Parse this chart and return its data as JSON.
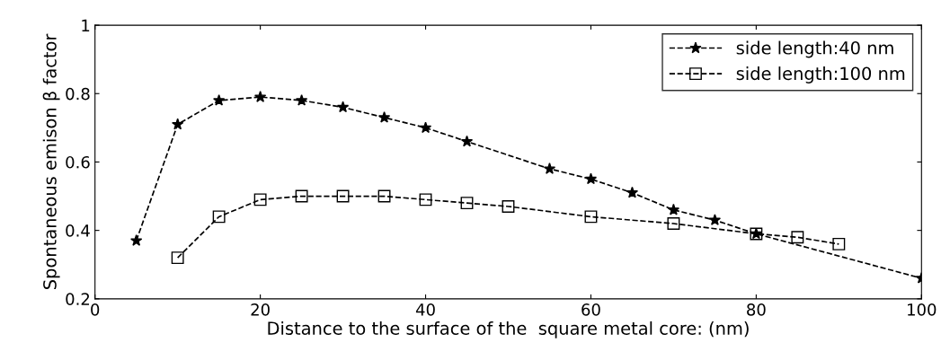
{
  "chart_data": {
    "type": "line",
    "xlabel": "Distance to the surface of the  square metal core: (nm)",
    "ylabel": "Spontaneous emison β factor",
    "xlim": [
      0,
      100
    ],
    "xticks": [
      0,
      20,
      40,
      60,
      80,
      100
    ],
    "ylim": [
      0.2,
      1
    ],
    "yticks": [
      0.2,
      0.4,
      0.6,
      0.8,
      1
    ],
    "grid": false,
    "legend": "top right",
    "line_style": "dashed",
    "series": [
      {
        "name": "side length:40 nm",
        "color": "#000000",
        "marker": "star",
        "x": [
          5,
          10,
          15,
          20,
          25,
          30,
          35,
          40,
          45,
          55,
          60,
          65,
          70,
          75,
          80,
          100
        ],
        "values": [
          0.37,
          0.71,
          0.78,
          0.79,
          0.78,
          0.76,
          0.73,
          0.7,
          0.66,
          0.58,
          0.55,
          0.51,
          0.46,
          0.43,
          0.39,
          0.26
        ]
      },
      {
        "name": "side length:100 nm",
        "color": "#000000",
        "marker": "square",
        "x": [
          10,
          15,
          20,
          25,
          30,
          35,
          40,
          45,
          50,
          60,
          70,
          80,
          85,
          90
        ],
        "values": [
          0.32,
          0.44,
          0.49,
          0.5,
          0.5,
          0.5,
          0.49,
          0.48,
          0.47,
          0.44,
          0.42,
          0.39,
          0.38,
          0.36
        ]
      }
    ]
  }
}
